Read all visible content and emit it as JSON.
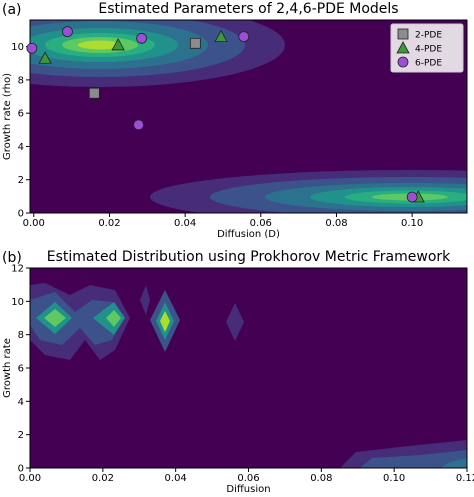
{
  "chart_data": [
    {
      "type": "scatter",
      "panel": "(a)",
      "title": "Estimated Parameters of 2,4,6-PDE Models",
      "x_label": "Diffusion (D)",
      "y_label": "Growth rate (rho)",
      "xlim": [
        -0.001,
        0.1145
      ],
      "ylim": [
        0,
        11.6
      ],
      "xticks": [
        {
          "value": 0,
          "label": "0.00"
        },
        0.02,
        0.04,
        0.06,
        0.08,
        {
          "value": 0.1,
          "label": "0.10"
        }
      ],
      "yticks": [
        0,
        2,
        4,
        6,
        8,
        10
      ],
      "legend": "upper right",
      "series": [
        {
          "name": "2-PDE",
          "color": "#8c8c8c",
          "marker": "square",
          "x": [
            0.016,
            0.0427
          ],
          "values": [
            7.2,
            10.2
          ]
        },
        {
          "name": "4-PDE",
          "color": "#3a9a3a",
          "marker": "triangle",
          "x": [
            0.003,
            0.0223,
            0.0495,
            0.1016
          ],
          "values": [
            9.3,
            10.1,
            10.6,
            0.96
          ]
        },
        {
          "name": "6-PDE",
          "color": "#9b4fd6",
          "marker": "circle",
          "x": [
            -0.0005,
            0.0089,
            0.0285,
            0.0277,
            0.0555,
            0.1
          ],
          "values": [
            9.9,
            10.9,
            10.5,
            5.3,
            10.6,
            0.96
          ]
        }
      ]
    },
    {
      "type": "contour",
      "panel": "(b)",
      "title": "Estimated Distribution using Prokhorov Metric Framework",
      "x_label": "Diffusion",
      "y_label": "Growth rate",
      "xlim": [
        0,
        0.12
      ],
      "ylim": [
        0,
        12
      ],
      "xticks": [
        {
          "value": 0,
          "label": "0.00"
        },
        0.02,
        0.04,
        0.06,
        0.08,
        {
          "value": 0.1,
          "label": "0.10"
        },
        {
          "value": 0.12,
          "label": "0.12"
        }
      ],
      "yticks": [
        0,
        2,
        4,
        6,
        8,
        10,
        12
      ]
    }
  ]
}
